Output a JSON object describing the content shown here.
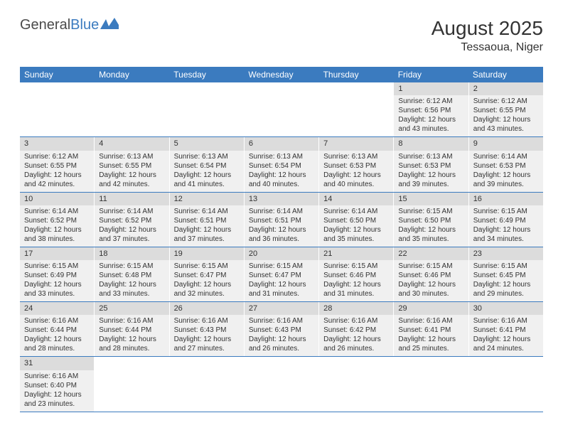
{
  "logo": {
    "text1": "General",
    "text2": "Blue"
  },
  "title": "August 2025",
  "location": "Tessaoua, Niger",
  "colors": {
    "header_bg": "#3b7bbf",
    "header_text": "#ffffff",
    "cell_bg": "#f0f0f0",
    "daynum_bg": "#dcdcdc",
    "border": "#3b7bbf",
    "text": "#333333"
  },
  "weekdays": [
    "Sunday",
    "Monday",
    "Tuesday",
    "Wednesday",
    "Thursday",
    "Friday",
    "Saturday"
  ],
  "weeks": [
    [
      null,
      null,
      null,
      null,
      null,
      {
        "n": "1",
        "sr": "6:12 AM",
        "ss": "6:56 PM",
        "dh": "12",
        "dm": "43"
      },
      {
        "n": "2",
        "sr": "6:12 AM",
        "ss": "6:55 PM",
        "dh": "12",
        "dm": "43"
      }
    ],
    [
      {
        "n": "3",
        "sr": "6:12 AM",
        "ss": "6:55 PM",
        "dh": "12",
        "dm": "42"
      },
      {
        "n": "4",
        "sr": "6:13 AM",
        "ss": "6:55 PM",
        "dh": "12",
        "dm": "42"
      },
      {
        "n": "5",
        "sr": "6:13 AM",
        "ss": "6:54 PM",
        "dh": "12",
        "dm": "41"
      },
      {
        "n": "6",
        "sr": "6:13 AM",
        "ss": "6:54 PM",
        "dh": "12",
        "dm": "40"
      },
      {
        "n": "7",
        "sr": "6:13 AM",
        "ss": "6:53 PM",
        "dh": "12",
        "dm": "40"
      },
      {
        "n": "8",
        "sr": "6:13 AM",
        "ss": "6:53 PM",
        "dh": "12",
        "dm": "39"
      },
      {
        "n": "9",
        "sr": "6:14 AM",
        "ss": "6:53 PM",
        "dh": "12",
        "dm": "39"
      }
    ],
    [
      {
        "n": "10",
        "sr": "6:14 AM",
        "ss": "6:52 PM",
        "dh": "12",
        "dm": "38"
      },
      {
        "n": "11",
        "sr": "6:14 AM",
        "ss": "6:52 PM",
        "dh": "12",
        "dm": "37"
      },
      {
        "n": "12",
        "sr": "6:14 AM",
        "ss": "6:51 PM",
        "dh": "12",
        "dm": "37"
      },
      {
        "n": "13",
        "sr": "6:14 AM",
        "ss": "6:51 PM",
        "dh": "12",
        "dm": "36"
      },
      {
        "n": "14",
        "sr": "6:14 AM",
        "ss": "6:50 PM",
        "dh": "12",
        "dm": "35"
      },
      {
        "n": "15",
        "sr": "6:15 AM",
        "ss": "6:50 PM",
        "dh": "12",
        "dm": "35"
      },
      {
        "n": "16",
        "sr": "6:15 AM",
        "ss": "6:49 PM",
        "dh": "12",
        "dm": "34"
      }
    ],
    [
      {
        "n": "17",
        "sr": "6:15 AM",
        "ss": "6:49 PM",
        "dh": "12",
        "dm": "33"
      },
      {
        "n": "18",
        "sr": "6:15 AM",
        "ss": "6:48 PM",
        "dh": "12",
        "dm": "33"
      },
      {
        "n": "19",
        "sr": "6:15 AM",
        "ss": "6:47 PM",
        "dh": "12",
        "dm": "32"
      },
      {
        "n": "20",
        "sr": "6:15 AM",
        "ss": "6:47 PM",
        "dh": "12",
        "dm": "31"
      },
      {
        "n": "21",
        "sr": "6:15 AM",
        "ss": "6:46 PM",
        "dh": "12",
        "dm": "31"
      },
      {
        "n": "22",
        "sr": "6:15 AM",
        "ss": "6:46 PM",
        "dh": "12",
        "dm": "30"
      },
      {
        "n": "23",
        "sr": "6:15 AM",
        "ss": "6:45 PM",
        "dh": "12",
        "dm": "29"
      }
    ],
    [
      {
        "n": "24",
        "sr": "6:16 AM",
        "ss": "6:44 PM",
        "dh": "12",
        "dm": "28"
      },
      {
        "n": "25",
        "sr": "6:16 AM",
        "ss": "6:44 PM",
        "dh": "12",
        "dm": "28"
      },
      {
        "n": "26",
        "sr": "6:16 AM",
        "ss": "6:43 PM",
        "dh": "12",
        "dm": "27"
      },
      {
        "n": "27",
        "sr": "6:16 AM",
        "ss": "6:43 PM",
        "dh": "12",
        "dm": "26"
      },
      {
        "n": "28",
        "sr": "6:16 AM",
        "ss": "6:42 PM",
        "dh": "12",
        "dm": "26"
      },
      {
        "n": "29",
        "sr": "6:16 AM",
        "ss": "6:41 PM",
        "dh": "12",
        "dm": "25"
      },
      {
        "n": "30",
        "sr": "6:16 AM",
        "ss": "6:41 PM",
        "dh": "12",
        "dm": "24"
      }
    ],
    [
      {
        "n": "31",
        "sr": "6:16 AM",
        "ss": "6:40 PM",
        "dh": "12",
        "dm": "23"
      },
      null,
      null,
      null,
      null,
      null,
      null
    ]
  ],
  "labels": {
    "sunrise": "Sunrise: ",
    "sunset": "Sunset: ",
    "daylight1": "Daylight: ",
    "daylight2": " hours",
    "daylight3": "and ",
    "daylight4": " minutes."
  }
}
